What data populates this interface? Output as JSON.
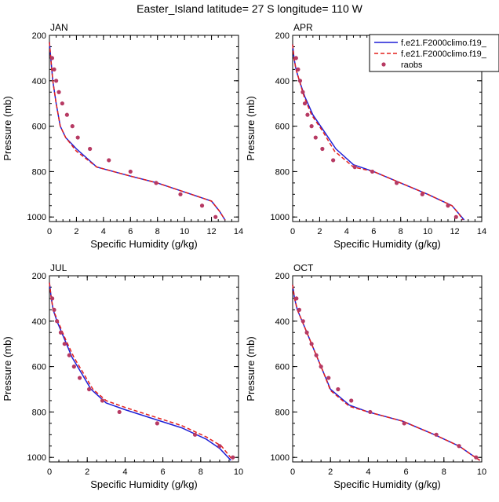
{
  "figure_title": "Easter_Island  latitude= 27 S longitude= 110 W",
  "colors": {
    "model1": "#1f1fd6",
    "model2": "#e4201c",
    "obs": "#b73a63",
    "axis": "#000000"
  },
  "legend": {
    "entries": [
      {
        "label": "f.e21.F2000climo.f19_",
        "style": "solid",
        "color": "#1f1fd6"
      },
      {
        "label": "f.e21.F2000climo.f19_",
        "style": "dashed",
        "color": "#e4201c"
      },
      {
        "label": "raobs",
        "style": "marker",
        "color": "#b73a63"
      }
    ]
  },
  "chart_data": [
    {
      "type": "line",
      "panel": "JAN",
      "xlabel": "Specific Humidity (g/kg)",
      "ylabel": "Pressure (mb)",
      "xlim": [
        0,
        14
      ],
      "ylim": [
        1020,
        200
      ],
      "xticks": [
        0,
        2,
        4,
        6,
        8,
        10,
        12,
        14
      ],
      "yticks": [
        200,
        400,
        600,
        800,
        1000
      ],
      "series": [
        {
          "name": "f.e21.F2000climo.f19_ (solid)",
          "style": "solid",
          "x": [
            0.0,
            0.1,
            0.25,
            0.5,
            0.8,
            1.2,
            2.0,
            3.5,
            6.0,
            8.0,
            10.0,
            12.0,
            12.6,
            13.0
          ],
          "y": [
            230,
            300,
            400,
            500,
            600,
            650,
            700,
            780,
            820,
            850,
            890,
            930,
            975,
            1013
          ]
        },
        {
          "name": "f.e21.F2000climo.f19_ (dashed)",
          "style": "dashed",
          "x": [
            0.0,
            0.1,
            0.25,
            0.5,
            0.8,
            1.2,
            2.0,
            3.5,
            6.0,
            8.0,
            10.0,
            12.0,
            12.6,
            13.0
          ],
          "y": [
            230,
            300,
            400,
            500,
            600,
            650,
            710,
            780,
            820,
            850,
            890,
            930,
            975,
            1013
          ]
        },
        {
          "name": "raobs",
          "style": "marker",
          "x": [
            0.2,
            0.35,
            0.5,
            0.7,
            0.95,
            1.3,
            1.7,
            2.1,
            3.0,
            4.4,
            6.0,
            7.9,
            9.7,
            11.3,
            12.3
          ],
          "y": [
            300,
            350,
            400,
            450,
            500,
            550,
            600,
            650,
            700,
            750,
            800,
            850,
            900,
            950,
            1000
          ]
        }
      ]
    },
    {
      "type": "line",
      "panel": "APR",
      "xlabel": "Specific Humidity (g/kg)",
      "ylabel": "Pressure (mb)",
      "xlim": [
        0,
        14
      ],
      "ylim": [
        1020,
        200
      ],
      "xticks": [
        0,
        2,
        4,
        6,
        8,
        10,
        12,
        14
      ],
      "yticks": [
        200,
        400,
        600,
        800,
        1000
      ],
      "series": [
        {
          "name": "f.e21.F2000climo.f19_ (solid)",
          "style": "solid",
          "x": [
            0.0,
            0.1,
            0.25,
            0.5,
            0.9,
            1.5,
            2.3,
            3.2,
            4.5,
            6.0,
            8.0,
            10.0,
            11.8,
            12.3,
            12.7
          ],
          "y": [
            240,
            300,
            350,
            400,
            470,
            550,
            620,
            700,
            770,
            800,
            850,
            900,
            950,
            985,
            1013
          ]
        },
        {
          "name": "f.e21.F2000climo.f19_ (dashed)",
          "style": "dashed",
          "x": [
            0.0,
            0.1,
            0.25,
            0.5,
            0.85,
            1.4,
            2.2,
            3.1,
            4.5,
            6.0,
            8.0,
            10.0,
            11.8,
            12.3,
            12.6
          ],
          "y": [
            240,
            300,
            350,
            400,
            470,
            550,
            620,
            710,
            780,
            800,
            850,
            900,
            950,
            985,
            1013
          ]
        },
        {
          "name": "raobs",
          "style": "marker",
          "x": [
            0.25,
            0.4,
            0.55,
            0.75,
            0.9,
            1.1,
            1.4,
            1.7,
            2.2,
            3.0,
            4.6,
            5.9,
            7.7,
            9.6,
            11.5,
            12.1
          ],
          "y": [
            300,
            350,
            400,
            450,
            500,
            550,
            600,
            650,
            700,
            750,
            780,
            800,
            850,
            900,
            950,
            1000
          ]
        }
      ]
    },
    {
      "type": "line",
      "panel": "JUL",
      "xlabel": "Specific Humidity (g/kg)",
      "ylabel": "Pressure (mb)",
      "xlim": [
        0,
        10
      ],
      "ylim": [
        1020,
        200
      ],
      "xticks": [
        0,
        2,
        4,
        6,
        8,
        10
      ],
      "yticks": [
        200,
        400,
        600,
        800,
        1000
      ],
      "series": [
        {
          "name": "f.e21.F2000climo.f19_ (solid)",
          "style": "solid",
          "x": [
            0.0,
            0.1,
            0.2,
            0.4,
            0.8,
            1.2,
            1.7,
            2.2,
            3.0,
            4.0,
            5.5,
            7.0,
            8.3,
            9.0,
            9.6
          ],
          "y": [
            230,
            300,
            350,
            400,
            480,
            560,
            630,
            700,
            760,
            790,
            830,
            870,
            920,
            960,
            1013
          ]
        },
        {
          "name": "f.e21.F2000climo.f19_ (dashed)",
          "style": "dashed",
          "x": [
            0.0,
            0.1,
            0.2,
            0.45,
            0.85,
            1.3,
            1.8,
            2.3,
            3.0,
            4.0,
            5.5,
            7.0,
            8.3,
            9.1,
            9.7
          ],
          "y": [
            230,
            300,
            350,
            400,
            480,
            560,
            630,
            700,
            750,
            780,
            820,
            860,
            910,
            950,
            1013
          ]
        },
        {
          "name": "raobs",
          "style": "marker",
          "x": [
            0.15,
            0.25,
            0.4,
            0.6,
            0.8,
            1.05,
            1.3,
            1.6,
            2.1,
            2.8,
            3.7,
            5.7,
            7.7,
            9.0,
            9.7
          ],
          "y": [
            300,
            350,
            400,
            450,
            500,
            550,
            600,
            650,
            700,
            750,
            800,
            850,
            900,
            950,
            1000
          ]
        }
      ]
    },
    {
      "type": "line",
      "panel": "OCT",
      "xlabel": "Specific Humidity (g/kg)",
      "ylabel": "Pressure (mb)",
      "xlim": [
        0,
        10
      ],
      "ylim": [
        1020,
        200
      ],
      "xticks": [
        0,
        2,
        4,
        6,
        8,
        10
      ],
      "yticks": [
        200,
        400,
        600,
        800,
        1000
      ],
      "series": [
        {
          "name": "f.e21.F2000climo.f19_ (solid)",
          "style": "solid",
          "x": [
            0.0,
            0.1,
            0.25,
            0.5,
            0.8,
            1.2,
            1.6,
            2.0,
            3.0,
            4.0,
            5.8,
            7.5,
            8.8,
            9.4,
            9.9
          ],
          "y": [
            240,
            300,
            350,
            400,
            460,
            540,
            620,
            700,
            770,
            800,
            840,
            900,
            950,
            985,
            1013
          ]
        },
        {
          "name": "f.e21.F2000climo.f19_ (dashed)",
          "style": "dashed",
          "x": [
            0.0,
            0.1,
            0.25,
            0.5,
            0.8,
            1.2,
            1.6,
            2.0,
            3.0,
            4.0,
            5.8,
            7.5,
            8.8,
            9.4,
            9.9
          ],
          "y": [
            240,
            300,
            350,
            400,
            460,
            540,
            620,
            705,
            775,
            800,
            840,
            900,
            950,
            985,
            1013
          ]
        },
        {
          "name": "raobs",
          "style": "marker",
          "x": [
            0.2,
            0.35,
            0.55,
            0.75,
            1.0,
            1.25,
            1.5,
            1.9,
            2.4,
            3.1,
            4.1,
            5.9,
            7.6,
            8.8,
            9.7
          ],
          "y": [
            300,
            350,
            400,
            450,
            500,
            550,
            600,
            650,
            700,
            750,
            800,
            850,
            900,
            950,
            1000
          ]
        }
      ]
    }
  ]
}
